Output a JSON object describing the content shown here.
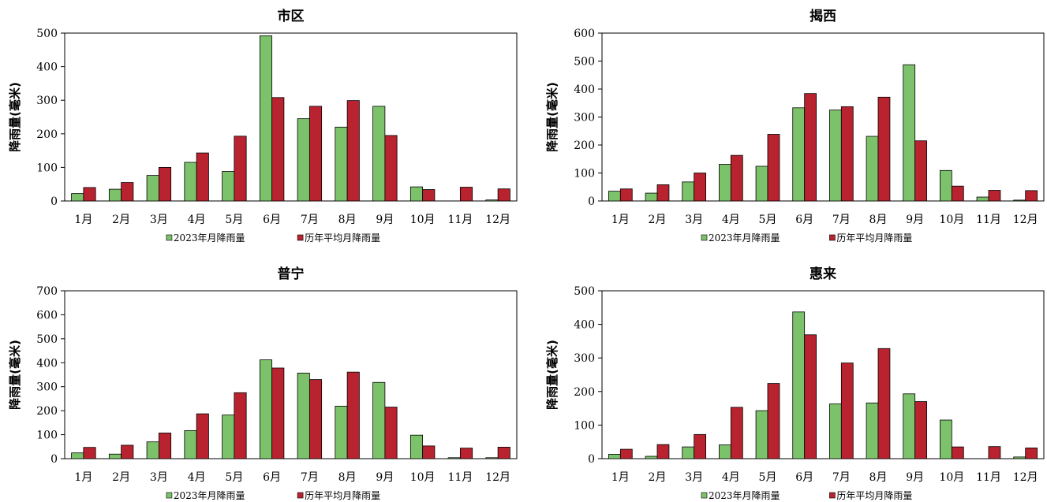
{
  "colors": {
    "series_2023": "#7cc26b",
    "series_avg": "#b8232f"
  },
  "chart_data": [
    {
      "type": "bar",
      "title": "市区",
      "ylabel": "降雨量(毫米)",
      "ylim": [
        0,
        500
      ],
      "yticks": [
        "0",
        "100",
        "200",
        "300",
        "400",
        "500"
      ],
      "categories": [
        "1月",
        "2月",
        "3月",
        "4月",
        "5月",
        "6月",
        "7月",
        "8月",
        "9月",
        "10月",
        "11月",
        "12月"
      ],
      "series": [
        {
          "name": "2023年月降雨量",
          "values": [
            22,
            35,
            76,
            115,
            88,
            492,
            245,
            220,
            282,
            42,
            0,
            3
          ]
        },
        {
          "name": "历年平均月降雨量",
          "values": [
            40,
            55,
            100,
            143,
            193,
            308,
            282,
            299,
            195,
            34,
            41,
            36
          ]
        }
      ],
      "legend": "bottom"
    },
    {
      "type": "bar",
      "title": "揭西",
      "ylabel": "降雨量(毫米)",
      "ylim": [
        0,
        600
      ],
      "yticks": [
        "0",
        "100",
        "200",
        "300",
        "400",
        "500",
        "600"
      ],
      "categories": [
        "1月",
        "2月",
        "3月",
        "4月",
        "5月",
        "6月",
        "7月",
        "8月",
        "9月",
        "10月",
        "11月",
        "12月"
      ],
      "series": [
        {
          "name": "2023年月降雨量",
          "values": [
            35,
            28,
            68,
            131,
            124,
            333,
            325,
            231,
            487,
            109,
            14,
            3
          ]
        },
        {
          "name": "历年平均月降雨量",
          "values": [
            43,
            58,
            100,
            163,
            238,
            384,
            337,
            371,
            215,
            53,
            38,
            37
          ]
        }
      ],
      "legend": "bottom"
    },
    {
      "type": "bar",
      "title": "普宁",
      "ylabel": "降雨量(毫米)",
      "ylim": [
        0,
        700
      ],
      "yticks": [
        "0",
        "100",
        "200",
        "300",
        "400",
        "500",
        "600",
        "700"
      ],
      "categories": [
        "1月",
        "2月",
        "3月",
        "4月",
        "5月",
        "6月",
        "7月",
        "8月",
        "9月",
        "10月",
        "11月",
        "12月"
      ],
      "series": [
        {
          "name": "2023年月降雨量",
          "values": [
            24,
            19,
            70,
            117,
            182,
            412,
            357,
            219,
            318,
            98,
            4,
            4
          ]
        },
        {
          "name": "历年平均月降雨量",
          "values": [
            47,
            56,
            107,
            187,
            275,
            378,
            330,
            361,
            215,
            53,
            44,
            48
          ]
        }
      ],
      "legend": "bottom"
    },
    {
      "type": "bar",
      "title": "惠来",
      "ylabel": "降雨量(毫米)",
      "ylim": [
        0,
        500
      ],
      "yticks": [
        "0",
        "100",
        "200",
        "300",
        "400",
        "500"
      ],
      "categories": [
        "1月",
        "2月",
        "3月",
        "4月",
        "5月",
        "6月",
        "7月",
        "8月",
        "9月",
        "10月",
        "11月",
        "12月"
      ],
      "series": [
        {
          "name": "2023年月降雨量",
          "values": [
            13,
            7,
            35,
            41,
            143,
            437,
            163,
            166,
            193,
            115,
            0,
            5
          ]
        },
        {
          "name": "历年平均月降雨量",
          "values": [
            28,
            42,
            72,
            153,
            224,
            369,
            285,
            328,
            170,
            35,
            36,
            32
          ]
        }
      ],
      "legend": "bottom"
    }
  ]
}
